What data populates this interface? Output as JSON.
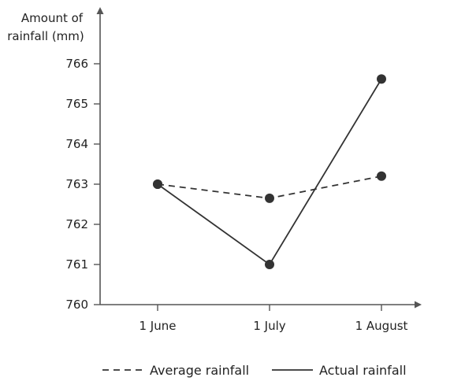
{
  "chart_data": {
    "type": "line",
    "ylabel": [
      "Amount of",
      "rainfall (mm)"
    ],
    "xlabel": "",
    "categories": [
      "1 June",
      "1 July",
      "1 August"
    ],
    "ylim": [
      760,
      766
    ],
    "yticks": [
      760,
      761,
      762,
      763,
      764,
      765,
      766
    ],
    "series": [
      {
        "name": "Average rainfall",
        "values": [
          763.0,
          762.65,
          763.2
        ],
        "style": "dashed"
      },
      {
        "name": "Actual rainfall",
        "values": [
          763.0,
          761.0,
          765.62
        ],
        "style": "solid"
      }
    ],
    "legend_placement": "bottom",
    "grid": false,
    "colors": {
      "line": "#333333",
      "axis": "#555555",
      "text": "#222222"
    }
  }
}
